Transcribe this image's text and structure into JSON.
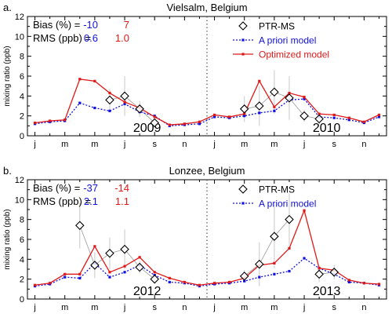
{
  "colors": {
    "apriori": "#1010e0",
    "optimized": "#e01818",
    "ptrms": "#000000",
    "errorbar": "#c8c8c8",
    "ptrms_line": "#9a9a9a",
    "axis": "#000000"
  },
  "chart_data": [
    {
      "type": "line",
      "panel_label": "a.",
      "title": "Vielsalm, Belgium",
      "xlabel": "",
      "ylabel": "mixing ratio (ppb)",
      "ylim": [
        0,
        12
      ],
      "yticks": [
        0,
        2,
        4,
        6,
        8,
        10,
        12
      ],
      "month_tick_labels": [
        "j",
        "m",
        "m",
        "j",
        "s",
        "n",
        "j",
        "m",
        "m",
        "j",
        "s",
        "n"
      ],
      "year_labels": [
        "2009",
        "2010"
      ],
      "divider_after_month": 12,
      "stats": {
        "bias_label": "Bias (%) =",
        "rms_label": "RMS (ppb) =",
        "apriori_bias": "-10",
        "optimized_bias": "7",
        "apriori_rms": "0.6",
        "optimized_rms": "1.0"
      },
      "legend": [
        "PTR-MS",
        "A priori model",
        "Optimized model"
      ],
      "series": [
        {
          "name": "A priori model",
          "style": "dotted",
          "values": [
            1.2,
            1.4,
            1.5,
            3.3,
            2.8,
            2.5,
            3.2,
            2.4,
            2.0,
            1.0,
            1.1,
            1.2,
            1.9,
            1.8,
            2.0,
            2.3,
            2.5,
            3.6,
            3.7,
            1.9,
            1.8,
            1.6,
            1.3,
            1.9
          ]
        },
        {
          "name": "Optimized model",
          "style": "solid",
          "values": [
            1.3,
            1.5,
            1.6,
            5.7,
            5.5,
            4.3,
            3.4,
            2.8,
            1.9,
            1.1,
            1.2,
            1.4,
            2.1,
            1.9,
            2.2,
            5.5,
            2.9,
            4.3,
            3.9,
            2.2,
            2.1,
            1.8,
            1.4,
            2.1
          ]
        },
        {
          "name": "PTR-MS",
          "points": [
            {
              "m": 6,
              "y": 3.6,
              "err": 1.1
            },
            {
              "m": 7,
              "y": 4.0,
              "err": 2.0
            },
            {
              "m": 8,
              "y": 2.7,
              "err": 0.8
            },
            {
              "m": 9,
              "y": 1.3,
              "err": 0.4
            },
            {
              "m": 15,
              "y": 2.7,
              "err": 1.3
            },
            {
              "m": 16,
              "y": 3.0,
              "err": 2.0
            },
            {
              "m": 17,
              "y": 4.4,
              "err": 2.2
            },
            {
              "m": 18,
              "y": 3.8,
              "err": 2.2
            },
            {
              "m": 19,
              "y": 2.0,
              "err": 0.6
            },
            {
              "m": 20,
              "y": 1.7,
              "err": 0.5
            }
          ]
        }
      ]
    },
    {
      "type": "line",
      "panel_label": "b.",
      "title": "Lonzee, Belgium",
      "xlabel": "",
      "ylabel": "mixing ratio (ppb)",
      "ylim": [
        0,
        12
      ],
      "yticks": [
        0,
        2,
        4,
        6,
        8,
        10,
        12
      ],
      "month_tick_labels": [
        "j",
        "m",
        "m",
        "j",
        "s",
        "n",
        "j",
        "m",
        "m",
        "j",
        "s",
        "n"
      ],
      "year_labels": [
        "2012",
        "2013"
      ],
      "divider_after_month": 12,
      "stats": {
        "bias_label": "Bias (%) =",
        "rms_label": "RMS (ppb) =",
        "apriori_bias": "-37",
        "optimized_bias": "-14",
        "apriori_rms": "2.1",
        "optimized_rms": "1.1"
      },
      "legend": [
        "PTR-MS",
        "A priori model"
      ],
      "series": [
        {
          "name": "A priori model",
          "style": "dotted",
          "values": [
            1.3,
            1.5,
            2.2,
            2.1,
            3.6,
            2.2,
            2.7,
            3.4,
            2.4,
            1.7,
            1.6,
            1.3,
            1.5,
            1.6,
            1.8,
            2.2,
            2.5,
            2.8,
            4.1,
            3.1,
            2.5,
            1.7,
            1.6,
            1.4
          ]
        },
        {
          "name": "Optimized model",
          "style": "solid",
          "values": [
            1.4,
            1.6,
            2.5,
            2.5,
            5.3,
            2.7,
            3.3,
            4.2,
            2.7,
            2.1,
            1.7,
            1.4,
            1.6,
            1.7,
            2.1,
            3.4,
            3.6,
            5.1,
            8.9,
            3.1,
            2.9,
            1.9,
            1.6,
            1.5
          ]
        },
        {
          "name": "PTR-MS",
          "points": [
            {
              "m": 4,
              "y": 7.4,
              "err": 2.3
            },
            {
              "m": 5,
              "y": 3.4,
              "err": 1.3
            },
            {
              "m": 6,
              "y": 4.6,
              "err": 1.6
            },
            {
              "m": 7,
              "y": 5.0,
              "err": 2.0
            },
            {
              "m": 8,
              "y": 3.2,
              "err": 0.6
            },
            {
              "m": 9,
              "y": 2.0,
              "err": 0.4
            },
            {
              "m": 15,
              "y": 2.3,
              "err": 0.6
            },
            {
              "m": 16,
              "y": 3.5,
              "err": 2.2
            },
            {
              "m": 17,
              "y": 6.3,
              "err": 3.2
            },
            {
              "m": 18,
              "y": 8.0,
              "err": 2.6
            },
            {
              "m": 20,
              "y": 2.5,
              "err": 0.8
            },
            {
              "m": 21,
              "y": 2.7,
              "err": 0.7
            }
          ]
        }
      ]
    }
  ]
}
